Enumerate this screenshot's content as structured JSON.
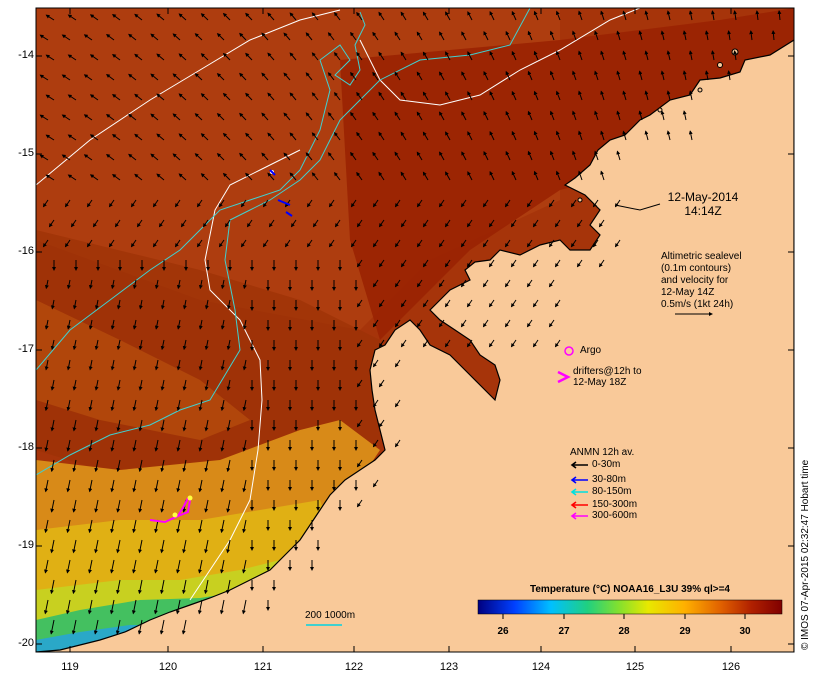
{
  "map": {
    "lat_labels": [
      "-14",
      "-15",
      "-16",
      "-17",
      "-18",
      "-19",
      "-20"
    ],
    "lon_labels": [
      "119",
      "120",
      "121",
      "122",
      "123",
      "124",
      "125",
      "126"
    ],
    "colors": {
      "land": "#f9c999",
      "sea_warm": "#9a2a02",
      "sea_mid": "#b8480a",
      "sea_cool": "#d98a1a",
      "coast_yellow": "#dccc12",
      "coast_green": "#40c060",
      "coast_cyan": "#22aacc",
      "frame": "#000000"
    }
  },
  "date_label": {
    "line1": "12-May-2014",
    "line2": "14:14Z"
  },
  "altimetry_note": {
    "lines": [
      "Altimetric sealevel",
      "(0.1m contours)",
      "and velocity for",
      "12-May 14Z",
      "0.5m/s (1kt 24h)"
    ]
  },
  "argo": {
    "label": "Argo"
  },
  "drifters": {
    "line1": "drifters@12h to",
    "line2": "12-May 18Z"
  },
  "anmn_legend": {
    "title": "ANMN 12h av.",
    "items": [
      {
        "label": "0-30m",
        "color": "#000000"
      },
      {
        "label": "30-80m",
        "color": "#0000ff"
      },
      {
        "label": "80-150m",
        "color": "#00e0e0"
      },
      {
        "label": "150-300m",
        "color": "#ff0000"
      },
      {
        "label": "300-600m",
        "color": "#ff00ff"
      }
    ]
  },
  "colorbar": {
    "title": "Temperature (°C) NOAA16_L3U 39% ql>=4",
    "ticks": [
      "26",
      "27",
      "28",
      "29",
      "30"
    ],
    "gradient": [
      "#000080",
      "#0040ff",
      "#00c0ff",
      "#20d080",
      "#80e030",
      "#e8e800",
      "#ffb000",
      "#e06000",
      "#b02000",
      "#800000"
    ]
  },
  "scale_bar": {
    "label": "200  1000m"
  },
  "credit": "© IMOS 07-Apr-2015 02:32:47 Hobart time"
}
